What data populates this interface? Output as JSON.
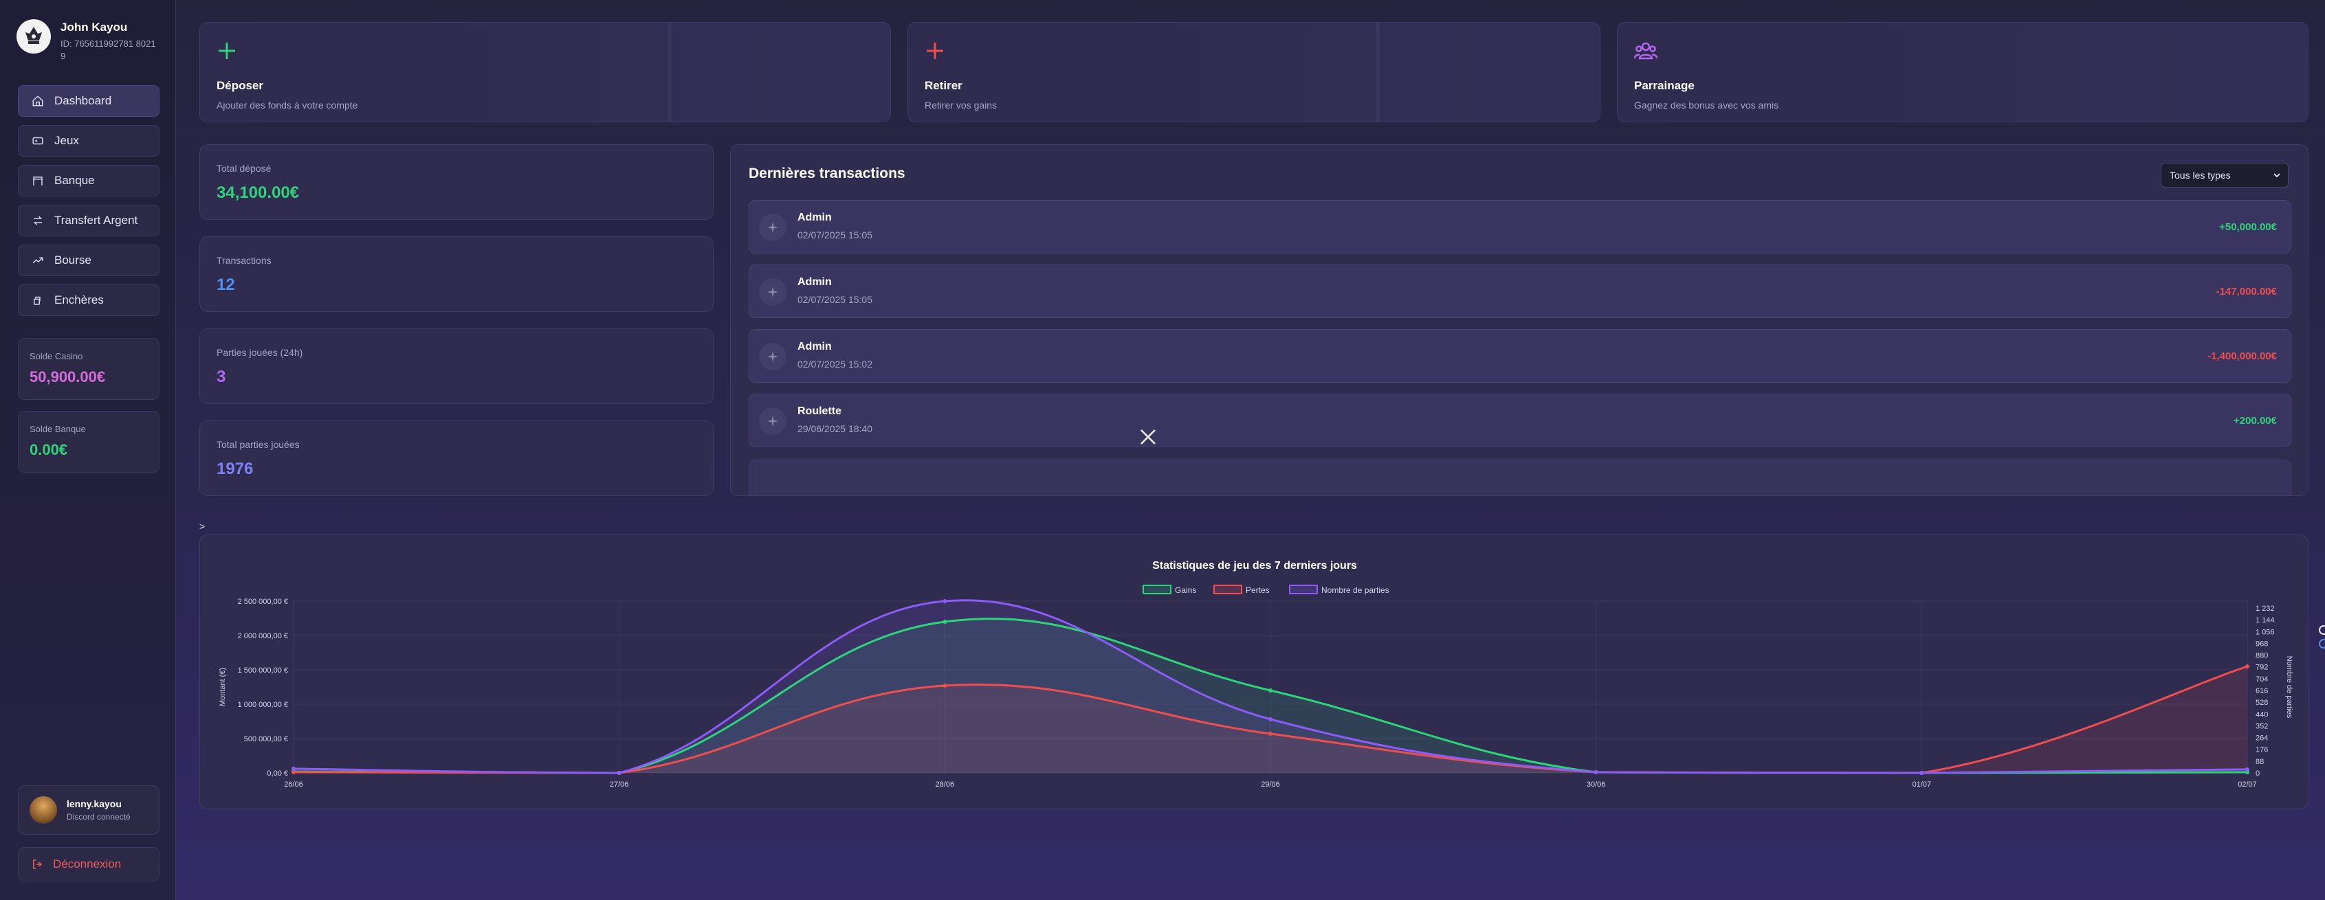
{
  "profile": {
    "name": "John Kayou",
    "id": "ID: 765611992781 80219"
  },
  "nav": [
    {
      "label": "Dashboard",
      "icon": "home-icon",
      "active": true
    },
    {
      "label": "Jeux",
      "icon": "gamepad-icon"
    },
    {
      "label": "Banque",
      "icon": "bank-icon"
    },
    {
      "label": "Transfert Argent",
      "icon": "transfer-icon"
    },
    {
      "label": "Bourse",
      "icon": "trend-icon"
    },
    {
      "label": "Enchères",
      "icon": "gavel-icon"
    }
  ],
  "balances": {
    "casino": {
      "label": "Solde Casino",
      "value": "50,900.00€",
      "color": "#d56bd8"
    },
    "bank": {
      "label": "Solde Banque",
      "value": "0.00€",
      "color": "#2ed47a"
    }
  },
  "user": {
    "name": "lenny.kayou",
    "status": "Discord connecté"
  },
  "logout_label": "Déconnexion",
  "actions": [
    {
      "title": "Déposer",
      "subtitle": "Ajouter des fonds à votre compte",
      "icon": "plus-icon",
      "color": "#2ed47a"
    },
    {
      "title": "Retirer",
      "subtitle": "Retirer vos gains",
      "icon": "plus-icon",
      "color": "#ef4e4e"
    },
    {
      "title": "Parrainage",
      "subtitle": "Gagnez des bonus avec vos amis",
      "icon": "users-icon",
      "color": "#b468f0"
    }
  ],
  "stats": [
    {
      "label": "Total déposé",
      "value": "34,100.00€",
      "color": "#2ed47a"
    },
    {
      "label": "Transactions",
      "value": "12",
      "color": "#4f8ff0"
    },
    {
      "label": "Parties jouées (24h)",
      "value": "3",
      "color": "#b468f0"
    },
    {
      "label": "Total parties jouées",
      "value": "1976",
      "color": "#7b83f5"
    }
  ],
  "transactions": {
    "title": "Dernières transactions",
    "filter": "Tous les types",
    "items": [
      {
        "name": "Admin",
        "date": "02/07/2025 15:05",
        "amount": "+50,000.00€",
        "type": "pos"
      },
      {
        "name": "Admin",
        "date": "02/07/2025 15:05",
        "amount": "-147,000.00€",
        "type": "neg"
      },
      {
        "name": "Admin",
        "date": "02/07/2025 15:02",
        "amount": "-1,400,000.00€",
        "type": "neg"
      },
      {
        "name": "Roulette",
        "date": "29/06/2025 18:40",
        "amount": "+200.00€",
        "type": "pos"
      }
    ]
  },
  "caret": ">",
  "chart_data": {
    "type": "line",
    "title": "Statistiques de jeu des 7 derniers jours",
    "categories": [
      "26/06",
      "27/06",
      "28/06",
      "29/06",
      "30/06",
      "01/07",
      "02/07"
    ],
    "series": [
      {
        "name": "Gains",
        "axis": "left",
        "color": "#2ed47a",
        "values": [
          20000,
          0,
          2200000,
          1200000,
          10000,
          0,
          10000
        ]
      },
      {
        "name": "Pertes",
        "axis": "left",
        "color": "#ef4e4e",
        "values": [
          10000,
          0,
          1270000,
          570000,
          10000,
          0,
          1550000
        ]
      },
      {
        "name": "Nombre de parties",
        "axis": "right",
        "color": "#8b5cf6",
        "values": [
          30,
          0,
          1232,
          385,
          5,
          0,
          25
        ]
      }
    ],
    "ylabel": "Montant (€)",
    "ylabel_right": "Nombre de parties",
    "ylim": [
      0,
      2500000
    ],
    "ylim_right": [
      0,
      1232
    ],
    "yticks": [
      "2 500 000,00 €",
      "2 000 000,00 €",
      "1 500 000,00 €",
      "1 000 000,00 €",
      "500 000,00 €",
      "0,00 €"
    ],
    "yticks_right": [
      "1 232",
      "1 144",
      "1 056",
      "968",
      "880",
      "792",
      "704",
      "616",
      "528",
      "440",
      "352",
      "264",
      "176",
      "88",
      "0"
    ],
    "grid": true,
    "legend": "top-center"
  }
}
